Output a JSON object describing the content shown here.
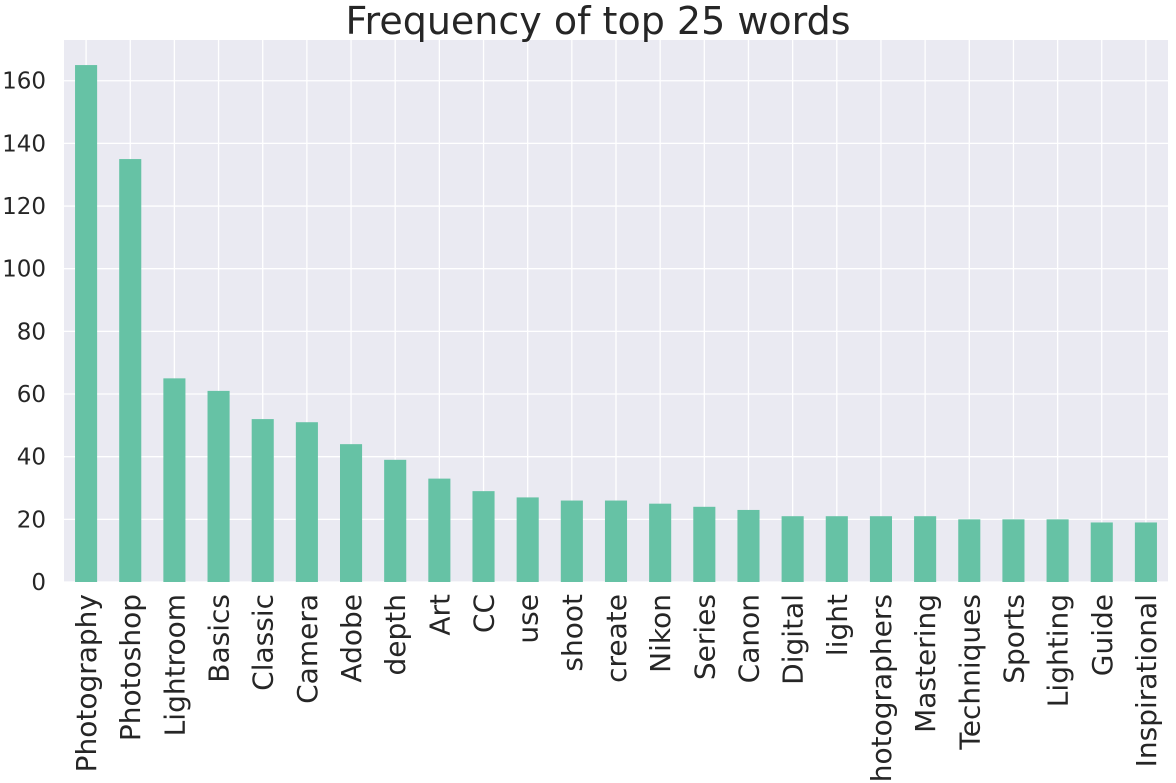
{
  "chart_data": {
    "type": "bar",
    "title": "Frequency of top 25 words",
    "xlabel": "",
    "ylabel": "",
    "categories": [
      "Photography",
      "Photoshop",
      "Lightroom",
      "Basics",
      "Classic",
      "Camera",
      "Adobe",
      "depth",
      "Art",
      "CC",
      "use",
      "shoot",
      "create",
      "Nikon",
      "Series",
      "Canon",
      "Digital",
      "light",
      "Photographers",
      "Mastering",
      "Techniques",
      "Sports",
      "Lighting",
      "Guide",
      "Inspirational"
    ],
    "values": [
      165,
      135,
      65,
      61,
      52,
      51,
      44,
      39,
      33,
      29,
      27,
      26,
      26,
      25,
      24,
      23,
      21,
      21,
      21,
      21,
      20,
      20,
      20,
      19,
      19
    ],
    "ylim": [
      0,
      173
    ],
    "yticks": [
      0,
      20,
      40,
      60,
      80,
      100,
      120,
      140,
      160
    ],
    "grid": true,
    "bar_color": "#66c2a5",
    "background_color": "#eaeaf2"
  }
}
